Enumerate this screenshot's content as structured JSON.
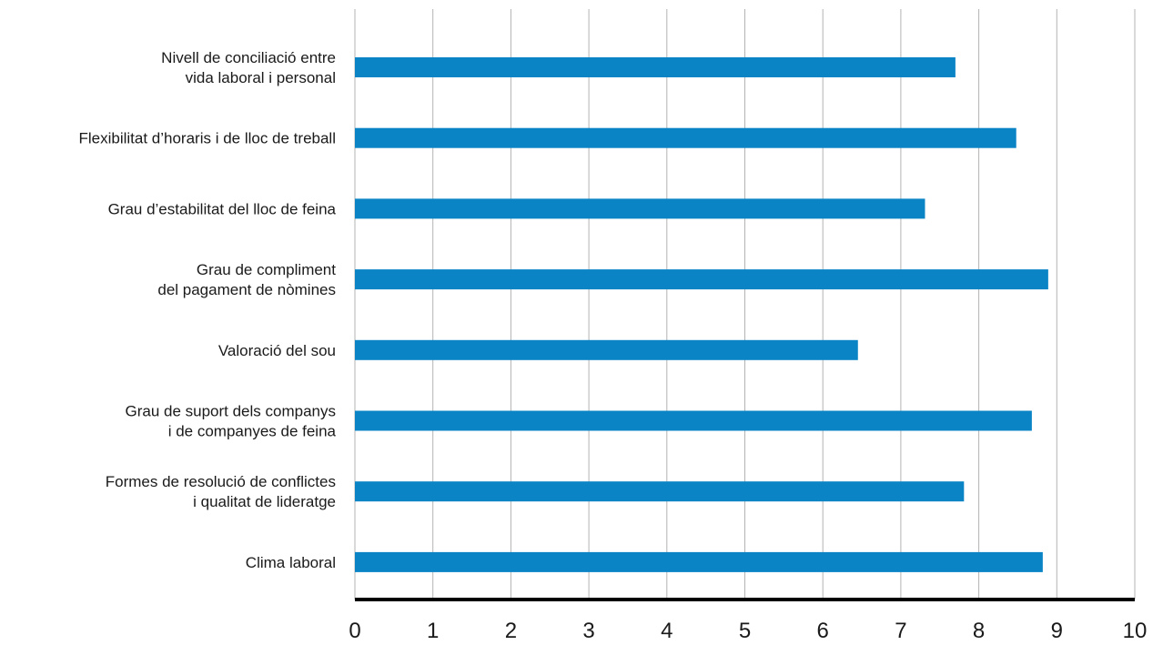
{
  "chart_data": {
    "type": "bar",
    "orientation": "horizontal",
    "categories": [
      [
        "Nivell de conciliació entre",
        "vida laboral i personal"
      ],
      [
        "Flexibilitat d’horaris i de lloc de treball"
      ],
      [
        "Grau d’estabilitat del lloc de feina"
      ],
      [
        "Grau de compliment",
        "del pagament de nòmines"
      ],
      [
        "Valoració del sou"
      ],
      [
        "Grau de suport dels companys",
        "i de companyes de feina"
      ],
      [
        "Formes de resolució de conflictes",
        "i qualitat de lideratge"
      ],
      [
        "Clima laboral"
      ]
    ],
    "values": [
      7.7,
      8.48,
      7.31,
      8.89,
      6.45,
      8.68,
      7.81,
      8.82
    ],
    "xlim": [
      0,
      10
    ],
    "ticks": [
      "0",
      "1",
      "2",
      "3",
      "4",
      "5",
      "6",
      "7",
      "8",
      "9",
      "10"
    ],
    "grid": "vertical",
    "title": "",
    "xlabel": "",
    "ylabel": "",
    "colors": {
      "bar": "#0b84c6",
      "grid": "#b3b3b3",
      "axis": "#000000",
      "text": "#1a1a1a"
    }
  }
}
